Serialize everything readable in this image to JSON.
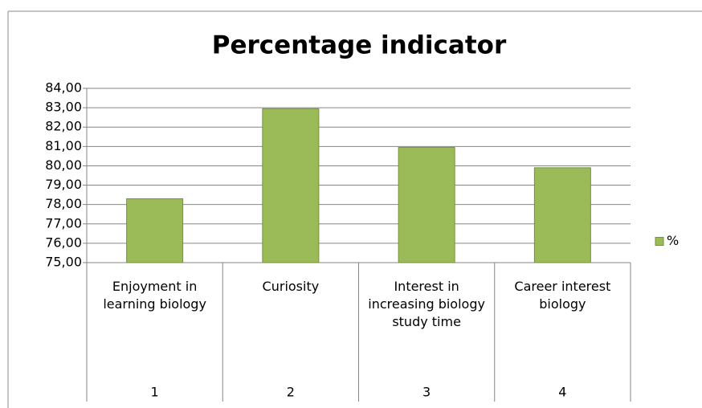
{
  "chart_data": {
    "type": "bar",
    "title": "Percentage indicator",
    "categories": [
      "Enjoyment in learning biology",
      "Curiosity",
      "Interest in increasing biology study time",
      "Career interest biology"
    ],
    "category_numbers": [
      "1",
      "2",
      "3",
      "4"
    ],
    "series": [
      {
        "name": "%",
        "color": "#9bbb59",
        "values": [
          78.3,
          82.95,
          80.95,
          79.9
        ]
      }
    ],
    "ylim": [
      75,
      84
    ],
    "yticks": [
      {
        "value": 75,
        "label": "75,00"
      },
      {
        "value": 76,
        "label": "76,00"
      },
      {
        "value": 77,
        "label": "77,00"
      },
      {
        "value": 78,
        "label": "78,00"
      },
      {
        "value": 79,
        "label": "79,00"
      },
      {
        "value": 80,
        "label": "80,00"
      },
      {
        "value": 81,
        "label": "81,00"
      },
      {
        "value": 82,
        "label": "82,00"
      },
      {
        "value": 83,
        "label": "83,00"
      },
      {
        "value": 84,
        "label": "84,00"
      }
    ],
    "grid": true,
    "legend": "right"
  }
}
